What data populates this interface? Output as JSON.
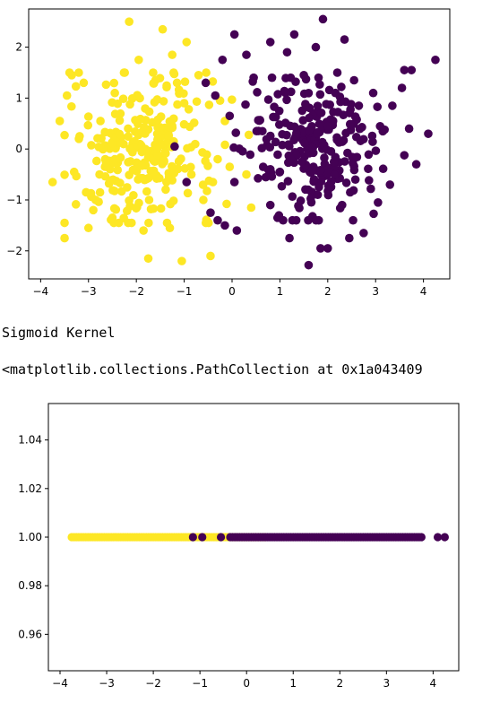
{
  "outputs": {
    "kernel_title": "Sigmoid Kernel",
    "repr_text": "<matplotlib.collections.PathCollection at 0x1a043409"
  },
  "colors": {
    "class0": "#440154",
    "class1": "#fde725",
    "axis": "#000000"
  },
  "chart_data": [
    {
      "type": "scatter",
      "title": "",
      "xlabel": "",
      "ylabel": "",
      "xlim": [
        -4.25,
        4.55
      ],
      "ylim": [
        -2.55,
        2.75
      ],
      "xticks": [
        -4,
        -3,
        -2,
        -1,
        0,
        1,
        2,
        3,
        4
      ],
      "yticks": [
        -2,
        -1,
        0,
        1,
        2
      ],
      "grid": false,
      "seed": 7,
      "series": [
        {
          "class": 0,
          "color": "#440154",
          "points": [
            [
              4.25,
              1.75
            ],
            [
              3.75,
              1.55
            ],
            [
              3.6,
              1.55
            ],
            [
              3.55,
              1.2
            ],
            [
              4.1,
              0.3
            ],
            [
              3.85,
              -0.3
            ],
            [
              3.7,
              0.4
            ],
            [
              3.3,
              -0.7
            ],
            [
              3.15,
              0.35
            ],
            [
              2.0,
              -1.95
            ],
            [
              1.6,
              -2.28
            ],
            [
              1.85,
              -1.95
            ],
            [
              1.3,
              2.25
            ],
            [
              1.9,
              2.55
            ],
            [
              2.35,
              2.15
            ],
            [
              1.75,
              2.0
            ],
            [
              0.8,
              2.1
            ],
            [
              0.3,
              1.85
            ],
            [
              0.05,
              2.25
            ],
            [
              -0.2,
              1.75
            ],
            [
              -0.55,
              1.3
            ],
            [
              -0.35,
              1.05
            ],
            [
              -1.2,
              0.05
            ],
            [
              -0.95,
              -0.65
            ],
            [
              -0.45,
              -1.25
            ],
            [
              -0.15,
              -1.5
            ],
            [
              0.1,
              -1.6
            ],
            [
              0.05,
              -0.65
            ],
            [
              -0.05,
              0.65
            ],
            [
              1.15,
              1.9
            ],
            [
              2.55,
              1.35
            ],
            [
              2.95,
              1.1
            ],
            [
              1.2,
              -1.75
            ],
            [
              2.45,
              -1.75
            ],
            [
              2.75,
              -1.65
            ],
            [
              0.95,
              -1.35
            ],
            [
              0.8,
              -1.1
            ],
            [
              1.5,
              1.45
            ],
            [
              2.2,
              1.5
            ],
            [
              2.3,
              -1.1
            ],
            [
              3.05,
              -1.05
            ],
            [
              0.65,
              -0.35
            ],
            [
              1.0,
              -0.45
            ],
            [
              1.7,
              -0.35
            ],
            [
              2.65,
              0.85
            ],
            [
              3.35,
              0.85
            ]
          ],
          "extra": {
            "count": 250,
            "cx": 1.75,
            "cy": 0.0,
            "sx": 0.7,
            "sy": 0.7,
            "xmin": -0.3,
            "xmax": 3.6,
            "ymin": -1.4,
            "ymax": 1.4
          }
        },
        {
          "class": 1,
          "color": "#fde725",
          "points": [
            [
              -3.75,
              -0.65
            ],
            [
              -3.6,
              0.55
            ],
            [
              -3.5,
              -1.75
            ],
            [
              -3.35,
              1.45
            ],
            [
              -3.45,
              1.05
            ],
            [
              -3.0,
              -1.55
            ],
            [
              -3.1,
              1.3
            ],
            [
              -2.15,
              2.5
            ],
            [
              -1.45,
              2.35
            ],
            [
              -0.95,
              2.1
            ],
            [
              -1.75,
              -2.15
            ],
            [
              -1.05,
              -2.2
            ],
            [
              -0.45,
              -2.1
            ],
            [
              -0.25,
              0.95
            ],
            [
              -0.15,
              0.55
            ],
            [
              -1.95,
              1.75
            ],
            [
              -1.25,
              1.85
            ],
            [
              -0.7,
              1.45
            ],
            [
              -2.85,
              -1.0
            ],
            [
              -2.5,
              -1.35
            ],
            [
              -2.1,
              -1.45
            ],
            [
              -1.85,
              -1.6
            ],
            [
              -1.3,
              -1.55
            ],
            [
              -0.6,
              -1.0
            ],
            [
              -0.3,
              -0.2
            ],
            [
              -0.05,
              -0.35
            ],
            [
              0.3,
              -0.5
            ],
            [
              0.4,
              -1.15
            ],
            [
              -0.4,
              -0.65
            ],
            [
              -3.3,
              -0.45
            ],
            [
              -3.2,
              0.2
            ],
            [
              -2.75,
              0.55
            ],
            [
              -2.45,
              1.1
            ],
            [
              -1.6,
              1.35
            ],
            [
              -1.15,
              1.3
            ],
            [
              -2.9,
              -1.2
            ],
            [
              -3.05,
              -0.85
            ],
            [
              -2.65,
              -0.2
            ],
            [
              -0.85,
              -0.5
            ],
            [
              -1.0,
              0.9
            ]
          ],
          "extra": {
            "count": 250,
            "cx": -1.85,
            "cy": 0.0,
            "sx": 0.75,
            "sy": 0.72,
            "xmin": -3.5,
            "xmax": 0.35,
            "ymin": -1.45,
            "ymax": 1.5
          }
        }
      ]
    },
    {
      "type": "scatter",
      "title": "",
      "xlabel": "",
      "ylabel": "",
      "xlim": [
        -4.25,
        4.55
      ],
      "ylim": [
        0.945,
        1.055
      ],
      "xticks": [
        -4,
        -3,
        -2,
        -1,
        0,
        1,
        2,
        3,
        4
      ],
      "yticks": [
        0.96,
        0.98,
        1.0,
        1.02,
        1.04
      ],
      "ytick_labels": [
        "0.96",
        "0.98",
        "1.00",
        "1.02",
        "1.04"
      ],
      "grid": false,
      "series": [
        {
          "class": 1,
          "color": "#fde725",
          "y": 1.0,
          "x_range": [
            -3.75,
            0.4
          ]
        },
        {
          "class": 0,
          "color": "#440154",
          "y": 1.0,
          "x_range": [
            -0.35,
            3.75
          ],
          "isolated": [
            -1.15,
            -0.95,
            -0.55,
            4.1,
            4.25
          ]
        }
      ]
    }
  ]
}
